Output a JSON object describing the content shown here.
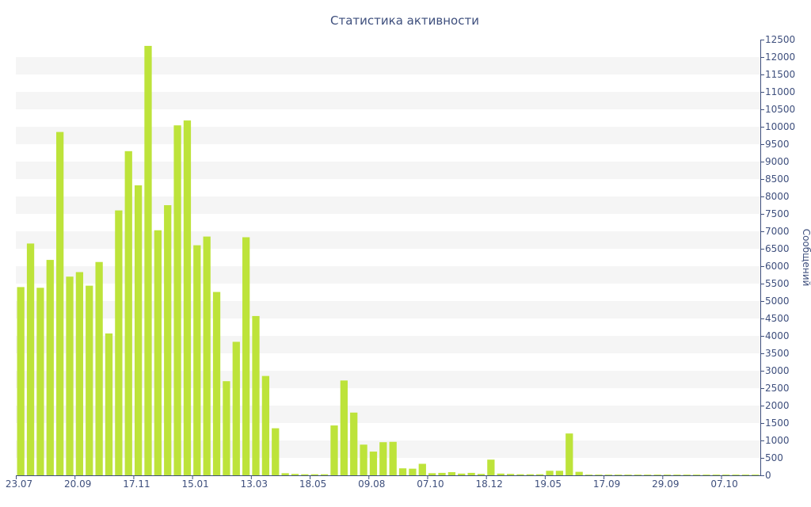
{
  "chart_data": {
    "type": "bar",
    "title": "Статистика активности",
    "xlabel": "",
    "ylabel": "Сообщений",
    "ylim": [
      0,
      12500
    ],
    "ytick_step": 500,
    "y_axis_position": "right",
    "grid": "alternating horizontal bands",
    "colors": {
      "bar": "#bde33a",
      "band": "#f5f5f5",
      "text": "#3e4f7d",
      "axis": "#3e4f7d"
    },
    "x_tick_labels": [
      "23.07",
      "20.09",
      "17.11",
      "15.01",
      "13.03",
      "18.05",
      "09.08",
      "07.10",
      "18.12",
      "19.05",
      "17.09",
      "29.09",
      "07.10"
    ],
    "x_tick_indices": [
      0,
      6,
      12,
      18,
      24,
      30,
      36,
      42,
      48,
      54,
      60,
      66,
      72
    ],
    "values": [
      5400,
      6650,
      5380,
      6180,
      9850,
      5700,
      5830,
      5440,
      6120,
      4070,
      7600,
      9300,
      8320,
      12320,
      7030,
      7750,
      10040,
      10180,
      6600,
      6850,
      5260,
      2700,
      3830,
      6830,
      4570,
      2850,
      1350,
      60,
      40,
      30,
      30,
      30,
      1430,
      2720,
      1800,
      880,
      680,
      950,
      960,
      200,
      190,
      330,
      60,
      70,
      90,
      50,
      70,
      40,
      450,
      50,
      40,
      30,
      30,
      30,
      130,
      130,
      1200,
      100,
      20,
      20,
      20,
      20,
      20,
      20,
      20,
      20,
      20,
      20,
      20,
      20,
      20,
      20,
      20,
      20,
      20,
      20
    ]
  }
}
